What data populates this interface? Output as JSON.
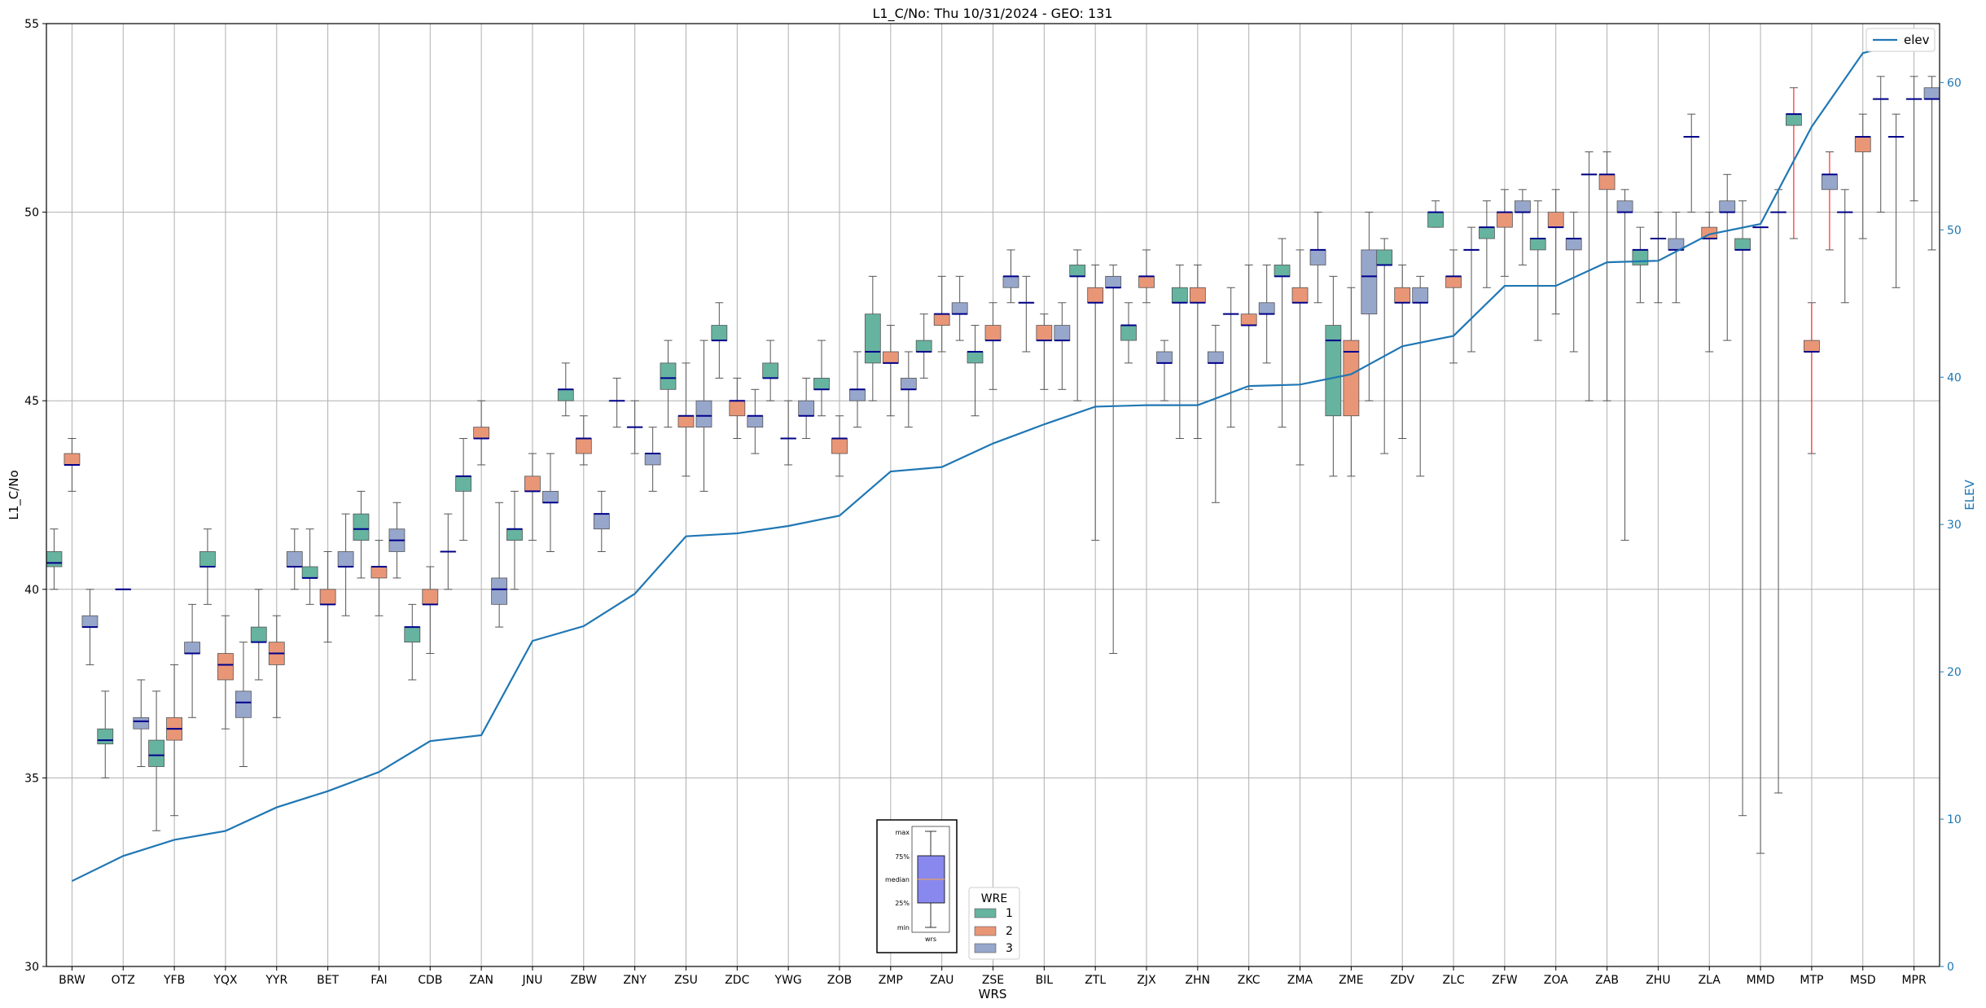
{
  "chart_data": {
    "type": "box",
    "title": "L1_C/No: Thu 10/31/2024 - GEO: 131",
    "xlabel": "WRS",
    "ylabel": "L1_C/No",
    "y2label": "ELEV",
    "ylim": [
      30,
      55
    ],
    "y2lim": [
      0,
      64
    ],
    "yticks": [
      30,
      35,
      40,
      45,
      50,
      55
    ],
    "y2ticks": [
      0,
      10,
      20,
      30,
      40,
      50,
      60
    ],
    "grid": true,
    "categories": [
      "BRW",
      "OTZ",
      "YFB",
      "YQX",
      "YYR",
      "BET",
      "FAI",
      "CDB",
      "ZAN",
      "JNU",
      "ZBW",
      "ZNY",
      "ZSU",
      "ZDC",
      "YWG",
      "ZOB",
      "ZMP",
      "ZAU",
      "ZSE",
      "BIL",
      "ZTL",
      "ZJX",
      "ZHN",
      "ZKC",
      "ZMA",
      "ZME",
      "ZDV",
      "ZLC",
      "ZFW",
      "ZOA",
      "ZAB",
      "ZHU",
      "ZLA",
      "MMD",
      "MTP",
      "MSD",
      "MPR"
    ],
    "series_colors": {
      "1": "#66b3a0",
      "2": "#e99677",
      "3": "#97a6cb",
      "median": "#00008b",
      "elev": "#1f77b4",
      "outlier_whisker": "#ff0000"
    },
    "boxes": [
      {
        "cat": "BRW",
        "wre": 1,
        "min": 40.0,
        "q1": 40.6,
        "med": 40.7,
        "q3": 41.0,
        "max": 41.6
      },
      {
        "cat": "BRW",
        "wre": 2,
        "min": 42.6,
        "q1": 43.3,
        "med": 43.3,
        "q3": 43.6,
        "max": 44.0
      },
      {
        "cat": "BRW",
        "wre": 3,
        "min": 38.0,
        "q1": 39.0,
        "med": 39.0,
        "q3": 39.3,
        "max": 40.0
      },
      {
        "cat": "OTZ",
        "wre": 1,
        "min": 35.0,
        "q1": 35.9,
        "med": 36.0,
        "q3": 36.3,
        "max": 37.3
      },
      {
        "cat": "OTZ",
        "wre": 2,
        "min": 40.0,
        "q1": 40.0,
        "med": 40.0,
        "q3": 40.0,
        "max": 40.0
      },
      {
        "cat": "OTZ",
        "wre": 3,
        "min": 35.3,
        "q1": 36.3,
        "med": 36.5,
        "q3": 36.6,
        "max": 37.6
      },
      {
        "cat": "YFB",
        "wre": 1,
        "min": 33.6,
        "q1": 35.3,
        "med": 35.6,
        "q3": 36.0,
        "max": 37.3
      },
      {
        "cat": "YFB",
        "wre": 2,
        "min": 34.0,
        "q1": 36.0,
        "med": 36.3,
        "q3": 36.6,
        "max": 38.0
      },
      {
        "cat": "YFB",
        "wre": 3,
        "min": 36.6,
        "q1": 38.3,
        "med": 38.3,
        "q3": 38.6,
        "max": 39.6
      },
      {
        "cat": "YQX",
        "wre": 1,
        "min": 39.6,
        "q1": 40.6,
        "med": 40.6,
        "q3": 41.0,
        "max": 41.6
      },
      {
        "cat": "YQX",
        "wre": 2,
        "min": 36.3,
        "q1": 37.6,
        "med": 38.0,
        "q3": 38.3,
        "max": 39.3
      },
      {
        "cat": "YQX",
        "wre": 3,
        "min": 35.3,
        "q1": 36.6,
        "med": 37.0,
        "q3": 37.3,
        "max": 38.6
      },
      {
        "cat": "YYR",
        "wre": 1,
        "min": 37.6,
        "q1": 38.6,
        "med": 38.6,
        "q3": 39.0,
        "max": 40.0
      },
      {
        "cat": "YYR",
        "wre": 2,
        "min": 36.6,
        "q1": 38.0,
        "med": 38.3,
        "q3": 38.6,
        "max": 39.3
      },
      {
        "cat": "YYR",
        "wre": 3,
        "min": 40.0,
        "q1": 40.6,
        "med": 40.6,
        "q3": 41.0,
        "max": 41.6
      },
      {
        "cat": "BET",
        "wre": 1,
        "min": 39.6,
        "q1": 40.3,
        "med": 40.3,
        "q3": 40.6,
        "max": 41.6
      },
      {
        "cat": "BET",
        "wre": 2,
        "min": 38.6,
        "q1": 39.6,
        "med": 39.6,
        "q3": 40.0,
        "max": 41.0
      },
      {
        "cat": "BET",
        "wre": 3,
        "min": 39.3,
        "q1": 40.6,
        "med": 40.6,
        "q3": 41.0,
        "max": 42.0
      },
      {
        "cat": "FAI",
        "wre": 1,
        "min": 40.3,
        "q1": 41.3,
        "med": 41.6,
        "q3": 42.0,
        "max": 42.6
      },
      {
        "cat": "FAI",
        "wre": 2,
        "min": 39.3,
        "q1": 40.3,
        "med": 40.6,
        "q3": 40.6,
        "max": 41.3
      },
      {
        "cat": "FAI",
        "wre": 3,
        "min": 40.3,
        "q1": 41.0,
        "med": 41.3,
        "q3": 41.6,
        "max": 42.3
      },
      {
        "cat": "CDB",
        "wre": 1,
        "min": 37.6,
        "q1": 38.6,
        "med": 39.0,
        "q3": 39.0,
        "max": 39.6
      },
      {
        "cat": "CDB",
        "wre": 2,
        "min": 38.3,
        "q1": 39.6,
        "med": 39.6,
        "q3": 40.0,
        "max": 40.6
      },
      {
        "cat": "CDB",
        "wre": 3,
        "min": 40.0,
        "q1": 41.0,
        "med": 41.0,
        "q3": 41.0,
        "max": 42.0
      },
      {
        "cat": "ZAN",
        "wre": 1,
        "min": 41.3,
        "q1": 42.6,
        "med": 43.0,
        "q3": 43.0,
        "max": 44.0
      },
      {
        "cat": "ZAN",
        "wre": 2,
        "min": 43.3,
        "q1": 44.0,
        "med": 44.0,
        "q3": 44.3,
        "max": 45.0
      },
      {
        "cat": "ZAN",
        "wre": 3,
        "min": 39.0,
        "q1": 39.6,
        "med": 40.0,
        "q3": 40.3,
        "max": 42.3
      },
      {
        "cat": "JNU",
        "wre": 1,
        "min": 40.0,
        "q1": 41.3,
        "med": 41.6,
        "q3": 41.6,
        "max": 42.6
      },
      {
        "cat": "JNU",
        "wre": 2,
        "min": 41.3,
        "q1": 42.6,
        "med": 42.6,
        "q3": 43.0,
        "max": 43.6
      },
      {
        "cat": "JNU",
        "wre": 3,
        "min": 41.0,
        "q1": 42.3,
        "med": 42.3,
        "q3": 42.6,
        "max": 43.6
      },
      {
        "cat": "ZBW",
        "wre": 1,
        "min": 44.6,
        "q1": 45.0,
        "med": 45.3,
        "q3": 45.3,
        "max": 46.0
      },
      {
        "cat": "ZBW",
        "wre": 2,
        "min": 43.3,
        "q1": 43.6,
        "med": 44.0,
        "q3": 44.0,
        "max": 44.6
      },
      {
        "cat": "ZBW",
        "wre": 3,
        "min": 41.0,
        "q1": 41.6,
        "med": 42.0,
        "q3": 42.0,
        "max": 42.6
      },
      {
        "cat": "ZNY",
        "wre": 1,
        "min": 44.3,
        "q1": 45.0,
        "med": 45.0,
        "q3": 45.0,
        "max": 45.6
      },
      {
        "cat": "ZNY",
        "wre": 2,
        "min": 43.6,
        "q1": 44.3,
        "med": 44.3,
        "q3": 44.3,
        "max": 45.0
      },
      {
        "cat": "ZNY",
        "wre": 3,
        "min": 42.6,
        "q1": 43.3,
        "med": 43.6,
        "q3": 43.6,
        "max": 44.3
      },
      {
        "cat": "ZSU",
        "wre": 1,
        "min": 44.3,
        "q1": 45.3,
        "med": 45.6,
        "q3": 46.0,
        "max": 46.6
      },
      {
        "cat": "ZSU",
        "wre": 2,
        "min": 43.0,
        "q1": 44.3,
        "med": 44.6,
        "q3": 44.6,
        "max": 46.0
      },
      {
        "cat": "ZSU",
        "wre": 3,
        "min": 42.6,
        "q1": 44.3,
        "med": 44.6,
        "q3": 45.0,
        "max": 46.6
      },
      {
        "cat": "ZDC",
        "wre": 1,
        "min": 45.6,
        "q1": 46.6,
        "med": 46.6,
        "q3": 47.0,
        "max": 47.6
      },
      {
        "cat": "ZDC",
        "wre": 2,
        "min": 44.0,
        "q1": 44.6,
        "med": 45.0,
        "q3": 45.0,
        "max": 45.6
      },
      {
        "cat": "ZDC",
        "wre": 3,
        "min": 43.6,
        "q1": 44.3,
        "med": 44.6,
        "q3": 44.6,
        "max": 45.3
      },
      {
        "cat": "YWG",
        "wre": 1,
        "min": 45.0,
        "q1": 45.6,
        "med": 45.6,
        "q3": 46.0,
        "max": 46.6
      },
      {
        "cat": "YWG",
        "wre": 2,
        "min": 43.3,
        "q1": 44.0,
        "med": 44.0,
        "q3": 44.0,
        "max": 45.0
      },
      {
        "cat": "YWG",
        "wre": 3,
        "min": 44.0,
        "q1": 44.6,
        "med": 44.6,
        "q3": 45.0,
        "max": 45.6
      },
      {
        "cat": "ZOB",
        "wre": 1,
        "min": 44.6,
        "q1": 45.3,
        "med": 45.3,
        "q3": 45.6,
        "max": 46.6
      },
      {
        "cat": "ZOB",
        "wre": 2,
        "min": 43.0,
        "q1": 43.6,
        "med": 44.0,
        "q3": 44.0,
        "max": 44.6
      },
      {
        "cat": "ZOB",
        "wre": 3,
        "min": 44.3,
        "q1": 45.0,
        "med": 45.3,
        "q3": 45.3,
        "max": 46.3
      },
      {
        "cat": "ZMP",
        "wre": 1,
        "min": 45.0,
        "q1": 46.0,
        "med": 46.3,
        "q3": 47.3,
        "max": 48.3
      },
      {
        "cat": "ZMP",
        "wre": 2,
        "min": 44.6,
        "q1": 46.0,
        "med": 46.0,
        "q3": 46.3,
        "max": 47.0
      },
      {
        "cat": "ZMP",
        "wre": 3,
        "min": 44.3,
        "q1": 45.3,
        "med": 45.3,
        "q3": 45.6,
        "max": 46.3
      },
      {
        "cat": "ZAU",
        "wre": 1,
        "min": 45.6,
        "q1": 46.3,
        "med": 46.3,
        "q3": 46.6,
        "max": 47.3
      },
      {
        "cat": "ZAU",
        "wre": 2,
        "min": 46.3,
        "q1": 47.0,
        "med": 47.3,
        "q3": 47.3,
        "max": 48.3
      },
      {
        "cat": "ZAU",
        "wre": 3,
        "min": 46.6,
        "q1": 47.3,
        "med": 47.3,
        "q3": 47.6,
        "max": 48.3
      },
      {
        "cat": "ZSE",
        "wre": 1,
        "min": 44.6,
        "q1": 46.0,
        "med": 46.3,
        "q3": 46.3,
        "max": 47.0
      },
      {
        "cat": "ZSE",
        "wre": 2,
        "min": 45.3,
        "q1": 46.6,
        "med": 46.6,
        "q3": 47.0,
        "max": 47.6
      },
      {
        "cat": "ZSE",
        "wre": 3,
        "min": 47.6,
        "q1": 48.0,
        "med": 48.3,
        "q3": 48.3,
        "max": 49.0
      },
      {
        "cat": "BIL",
        "wre": 1,
        "min": 46.3,
        "q1": 47.6,
        "med": 47.6,
        "q3": 47.6,
        "max": 48.3
      },
      {
        "cat": "BIL",
        "wre": 2,
        "min": 45.3,
        "q1": 46.6,
        "med": 46.6,
        "q3": 47.0,
        "max": 47.3
      },
      {
        "cat": "BIL",
        "wre": 3,
        "min": 45.3,
        "q1": 46.6,
        "med": 46.6,
        "q3": 47.0,
        "max": 47.6
      },
      {
        "cat": "ZTL",
        "wre": 1,
        "min": 45.0,
        "q1": 48.3,
        "med": 48.3,
        "q3": 48.6,
        "max": 49.0
      },
      {
        "cat": "ZTL",
        "wre": 2,
        "min": 41.3,
        "q1": 47.6,
        "med": 47.6,
        "q3": 48.0,
        "max": 48.6
      },
      {
        "cat": "ZTL",
        "wre": 3,
        "min": 38.3,
        "q1": 48.0,
        "med": 48.0,
        "q3": 48.3,
        "max": 48.6
      },
      {
        "cat": "ZJX",
        "wre": 1,
        "min": 46.0,
        "q1": 46.6,
        "med": 47.0,
        "q3": 47.0,
        "max": 47.6
      },
      {
        "cat": "ZJX",
        "wre": 2,
        "min": 47.6,
        "q1": 48.0,
        "med": 48.3,
        "q3": 48.3,
        "max": 49.0
      },
      {
        "cat": "ZJX",
        "wre": 3,
        "min": 45.0,
        "q1": 46.0,
        "med": 46.0,
        "q3": 46.3,
        "max": 46.6
      },
      {
        "cat": "ZHN",
        "wre": 1,
        "min": 44.0,
        "q1": 47.6,
        "med": 47.6,
        "q3": 48.0,
        "max": 48.6
      },
      {
        "cat": "ZHN",
        "wre": 2,
        "min": 44.0,
        "q1": 47.6,
        "med": 47.6,
        "q3": 48.0,
        "max": 48.6
      },
      {
        "cat": "ZHN",
        "wre": 3,
        "min": 42.3,
        "q1": 46.0,
        "med": 46.0,
        "q3": 46.3,
        "max": 47.0
      },
      {
        "cat": "ZKC",
        "wre": 1,
        "min": 44.3,
        "q1": 47.3,
        "med": 47.3,
        "q3": 47.3,
        "max": 48.0
      },
      {
        "cat": "ZKC",
        "wre": 2,
        "min": 45.3,
        "q1": 47.0,
        "med": 47.0,
        "q3": 47.3,
        "max": 48.6
      },
      {
        "cat": "ZKC",
        "wre": 3,
        "min": 46.0,
        "q1": 47.3,
        "med": 47.3,
        "q3": 47.6,
        "max": 48.6
      },
      {
        "cat": "ZMA",
        "wre": 1,
        "min": 44.3,
        "q1": 48.3,
        "med": 48.3,
        "q3": 48.6,
        "max": 49.3
      },
      {
        "cat": "ZMA",
        "wre": 2,
        "min": 43.3,
        "q1": 47.6,
        "med": 47.6,
        "q3": 48.0,
        "max": 49.0
      },
      {
        "cat": "ZMA",
        "wre": 3,
        "min": 47.6,
        "q1": 48.6,
        "med": 49.0,
        "q3": 49.0,
        "max": 50.0
      },
      {
        "cat": "ZME",
        "wre": 1,
        "min": 43.0,
        "q1": 44.6,
        "med": 46.6,
        "q3": 47.0,
        "max": 48.3
      },
      {
        "cat": "ZME",
        "wre": 2,
        "min": 43.0,
        "q1": 44.6,
        "med": 46.3,
        "q3": 46.6,
        "max": 48.0
      },
      {
        "cat": "ZME",
        "wre": 3,
        "min": 45.0,
        "q1": 47.3,
        "med": 48.3,
        "q3": 49.0,
        "max": 50.0
      },
      {
        "cat": "ZDV",
        "wre": 1,
        "min": 43.6,
        "q1": 48.6,
        "med": 48.6,
        "q3": 49.0,
        "max": 49.3
      },
      {
        "cat": "ZDV",
        "wre": 2,
        "min": 44.0,
        "q1": 47.6,
        "med": 47.6,
        "q3": 48.0,
        "max": 48.6
      },
      {
        "cat": "ZDV",
        "wre": 3,
        "min": 43.0,
        "q1": 47.6,
        "med": 47.6,
        "q3": 48.0,
        "max": 48.3
      },
      {
        "cat": "ZLC",
        "wre": 1,
        "min": 49.6,
        "q1": 49.6,
        "med": 50.0,
        "q3": 50.0,
        "max": 50.3
      },
      {
        "cat": "ZLC",
        "wre": 2,
        "min": 46.0,
        "q1": 48.0,
        "med": 48.3,
        "q3": 48.3,
        "max": 49.0
      },
      {
        "cat": "ZLC",
        "wre": 3,
        "min": 46.3,
        "q1": 49.0,
        "med": 49.0,
        "q3": 49.0,
        "max": 49.6
      },
      {
        "cat": "ZFW",
        "wre": 1,
        "min": 48.0,
        "q1": 49.3,
        "med": 49.6,
        "q3": 49.6,
        "max": 50.3
      },
      {
        "cat": "ZFW",
        "wre": 2,
        "min": 48.3,
        "q1": 49.6,
        "med": 50.0,
        "q3": 50.0,
        "max": 50.6
      },
      {
        "cat": "ZFW",
        "wre": 3,
        "min": 48.6,
        "q1": 50.0,
        "med": 50.0,
        "q3": 50.3,
        "max": 50.6
      },
      {
        "cat": "ZOA",
        "wre": 1,
        "min": 46.6,
        "q1": 49.0,
        "med": 49.3,
        "q3": 49.3,
        "max": 50.3
      },
      {
        "cat": "ZOA",
        "wre": 2,
        "min": 47.3,
        "q1": 49.6,
        "med": 49.6,
        "q3": 50.0,
        "max": 50.6
      },
      {
        "cat": "ZOA",
        "wre": 3,
        "min": 46.3,
        "q1": 49.0,
        "med": 49.3,
        "q3": 49.3,
        "max": 50.0
      },
      {
        "cat": "ZAB",
        "wre": 1,
        "min": 45.0,
        "q1": 51.0,
        "med": 51.0,
        "q3": 51.0,
        "max": 51.6
      },
      {
        "cat": "ZAB",
        "wre": 2,
        "min": 45.0,
        "q1": 50.6,
        "med": 51.0,
        "q3": 51.0,
        "max": 51.6
      },
      {
        "cat": "ZAB",
        "wre": 3,
        "min": 41.3,
        "q1": 50.0,
        "med": 50.0,
        "q3": 50.3,
        "max": 50.6
      },
      {
        "cat": "ZHU",
        "wre": 1,
        "min": 47.6,
        "q1": 48.6,
        "med": 49.0,
        "q3": 49.0,
        "max": 49.6
      },
      {
        "cat": "ZHU",
        "wre": 2,
        "min": 47.6,
        "q1": 49.3,
        "med": 49.3,
        "q3": 49.3,
        "max": 50.0
      },
      {
        "cat": "ZHU",
        "wre": 3,
        "min": 47.6,
        "q1": 49.0,
        "med": 49.0,
        "q3": 49.3,
        "max": 50.0
      },
      {
        "cat": "ZLA",
        "wre": 1,
        "min": 50.0,
        "q1": 52.0,
        "med": 52.0,
        "q3": 52.0,
        "max": 52.6
      },
      {
        "cat": "ZLA",
        "wre": 2,
        "min": 46.3,
        "q1": 49.3,
        "med": 49.3,
        "q3": 49.6,
        "max": 50.0
      },
      {
        "cat": "ZLA",
        "wre": 3,
        "min": 46.6,
        "q1": 50.0,
        "med": 50.0,
        "q3": 50.3,
        "max": 51.0
      },
      {
        "cat": "MMD",
        "wre": 1,
        "min": 34.0,
        "q1": 49.0,
        "med": 49.0,
        "q3": 49.3,
        "max": 50.3
      },
      {
        "cat": "MMD",
        "wre": 2,
        "min": 33.0,
        "q1": 49.6,
        "med": 49.6,
        "q3": 49.6,
        "max": 49.6
      },
      {
        "cat": "MMD",
        "wre": 3,
        "min": 34.6,
        "q1": 50.0,
        "med": 50.0,
        "q3": 50.0,
        "max": 50.6
      },
      {
        "cat": "MTP",
        "wre": 1,
        "min": 49.3,
        "q1": 52.3,
        "med": 52.6,
        "q3": 52.6,
        "max": 53.3,
        "outlier": true
      },
      {
        "cat": "MTP",
        "wre": 2,
        "min": 43.6,
        "q1": 46.3,
        "med": 46.3,
        "q3": 46.6,
        "max": 47.6,
        "outlier": true
      },
      {
        "cat": "MTP",
        "wre": 3,
        "min": 49.0,
        "q1": 50.6,
        "med": 51.0,
        "q3": 51.0,
        "max": 51.6,
        "outlier": true
      },
      {
        "cat": "MSD",
        "wre": 1,
        "min": 47.6,
        "q1": 50.0,
        "med": 50.0,
        "q3": 50.0,
        "max": 50.6
      },
      {
        "cat": "MSD",
        "wre": 2,
        "min": 49.3,
        "q1": 51.6,
        "med": 52.0,
        "q3": 52.0,
        "max": 52.6
      },
      {
        "cat": "MSD",
        "wre": 3,
        "min": 50.0,
        "q1": 53.0,
        "med": 53.0,
        "q3": 53.0,
        "max": 53.6
      },
      {
        "cat": "MPR",
        "wre": 1,
        "min": 48.0,
        "q1": 52.0,
        "med": 52.0,
        "q3": 52.0,
        "max": 52.6
      },
      {
        "cat": "MPR",
        "wre": 2,
        "min": 50.3,
        "q1": 53.0,
        "med": 53.0,
        "q3": 53.0,
        "max": 53.6
      },
      {
        "cat": "MPR",
        "wre": 3,
        "min": 49.0,
        "q1": 53.0,
        "med": 53.0,
        "q3": 53.3,
        "max": 53.6
      }
    ],
    "elev": {
      "name": "elev",
      "values": [
        5.8,
        7.5,
        8.6,
        9.2,
        10.8,
        11.9,
        13.2,
        15.3,
        15.7,
        22.1,
        23.1,
        25.3,
        29.2,
        29.4,
        29.9,
        30.6,
        33.6,
        33.9,
        35.5,
        36.8,
        38.0,
        38.1,
        38.1,
        39.4,
        39.5,
        40.2,
        42.1,
        42.8,
        46.2,
        46.2,
        47.8,
        47.9,
        49.7,
        50.4,
        57.0,
        62.0,
        62.9
      ]
    },
    "legend": {
      "elev_entry": "elev",
      "wre_title": "WRE",
      "wre_entries": [
        "1",
        "2",
        "3"
      ]
    },
    "key_inset": {
      "labels": [
        "max",
        "75%",
        "median",
        "25%",
        "min"
      ],
      "xlabel": "wrs"
    }
  }
}
